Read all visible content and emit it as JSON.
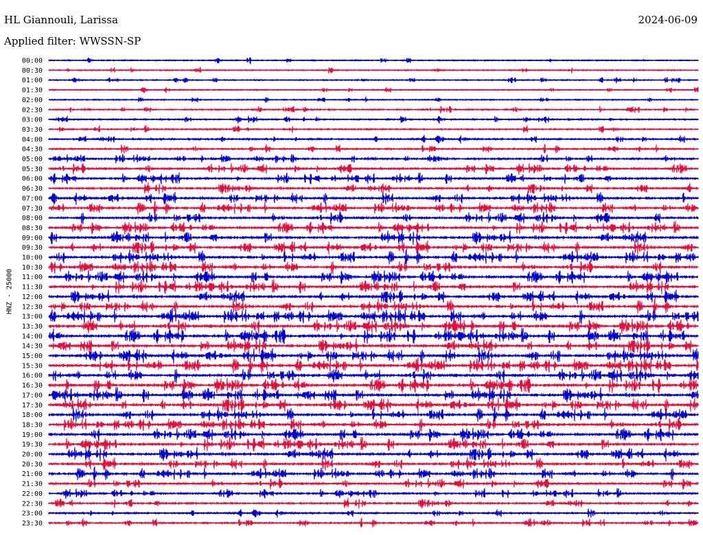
{
  "header": {
    "station": "HL Giannouli, Larissa",
    "date": "2024-06-09",
    "filter": "Applied filter: WWSSN-SP"
  },
  "chart_data": {
    "type": "line",
    "title": "HL Giannouli, Larissa",
    "subtitle": "Applied filter: WWSSN-SP",
    "ylabel": "HNZ - 25000",
    "xlabel": "",
    "row_labels": [
      "00:00",
      "00:30",
      "01:00",
      "01:30",
      "02:00",
      "02:30",
      "03:00",
      "03:30",
      "04:00",
      "04:30",
      "05:00",
      "05:30",
      "06:00",
      "06:30",
      "07:00",
      "07:30",
      "08:00",
      "08:30",
      "09:00",
      "09:30",
      "10:00",
      "10:30",
      "11:00",
      "11:30",
      "12:00",
      "12:30",
      "13:00",
      "13:30",
      "14:00",
      "14:30",
      "15:00",
      "15:30",
      "16:00",
      "16:30",
      "17:00",
      "17:30",
      "18:00",
      "18:30",
      "19:00",
      "19:30",
      "20:00",
      "20:30",
      "21:00",
      "21:30",
      "22:00",
      "22:30",
      "23:00",
      "23:30"
    ],
    "series_colors": [
      "#0000cc",
      "#e0103c"
    ],
    "activity": [
      1,
      1,
      1,
      1,
      1,
      2,
      2,
      2,
      3,
      3,
      4,
      5,
      5,
      5,
      6,
      6,
      6,
      6,
      7,
      7,
      7,
      7,
      7,
      7,
      7,
      7,
      8,
      8,
      8,
      8,
      8,
      8,
      8,
      8,
      8,
      8,
      7,
      7,
      7,
      7,
      7,
      6,
      6,
      5,
      4,
      4,
      3,
      3
    ],
    "grid": false
  }
}
